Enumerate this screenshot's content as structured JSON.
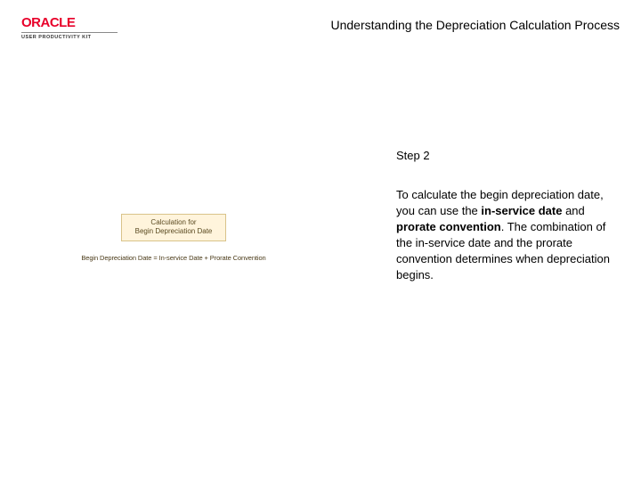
{
  "header": {
    "logo_text": "ORACLE",
    "logo_subtitle": "USER PRODUCTIVITY KIT",
    "page_title": "Understanding the Depreciation Calculation Process"
  },
  "illustration": {
    "box_line1": "Calculation for",
    "box_line2": "Begin Depreciation Date",
    "equation": "Begin Depreciation Date = In-service Date + Prorate Convention"
  },
  "content": {
    "step_label": "Step 2",
    "para_pre": "To calculate the begin depreciation date, you can use the ",
    "bold1": "in-service date",
    "para_mid": " and ",
    "bold2": "prorate convention",
    "para_post": ". The combination of the in-service date and the prorate convention determines when depreciation begins."
  },
  "colors": {
    "oracle_red": "#e8002a",
    "box_bg": "#fff4dc",
    "box_border": "#d9c38a",
    "box_text": "#5a4a20"
  }
}
